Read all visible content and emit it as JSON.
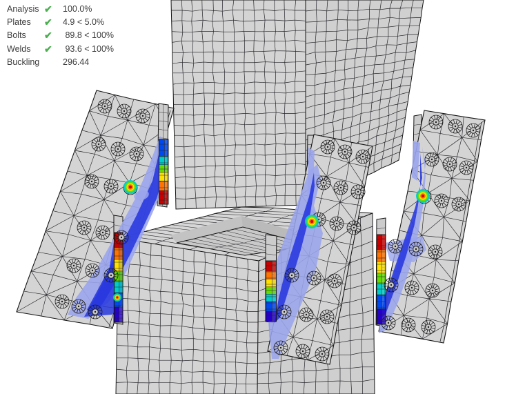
{
  "summary": {
    "check_icon": "✔",
    "rows": [
      {
        "label": "Analysis",
        "status": "pass",
        "value": "100.0%"
      },
      {
        "label": "Plates",
        "status": "pass",
        "value": "4.9 < 5.0%"
      },
      {
        "label": "Bolts",
        "status": "pass",
        "value": " 89.8 < 100%"
      },
      {
        "label": "Welds",
        "status": "pass",
        "value": " 93.6 < 100%"
      },
      {
        "label": "Buckling",
        "status": "none",
        "value": "296.44"
      }
    ]
  },
  "colors": {
    "status_ok_green": "#4caf50",
    "text": "#3c3c3c",
    "steel_fill": "#d4d4d4",
    "steel_side": "#d0d0d0",
    "mesh_line": "#26262b",
    "stress_scale": [
      "#c80000",
      "#ff7300",
      "#ffe100",
      "#64dc00",
      "#00cdc8",
      "#0049f0",
      "#2500c8"
    ],
    "stress_blue_light": "#9ba5ec",
    "stress_blue_dark": "#2737de"
  }
}
